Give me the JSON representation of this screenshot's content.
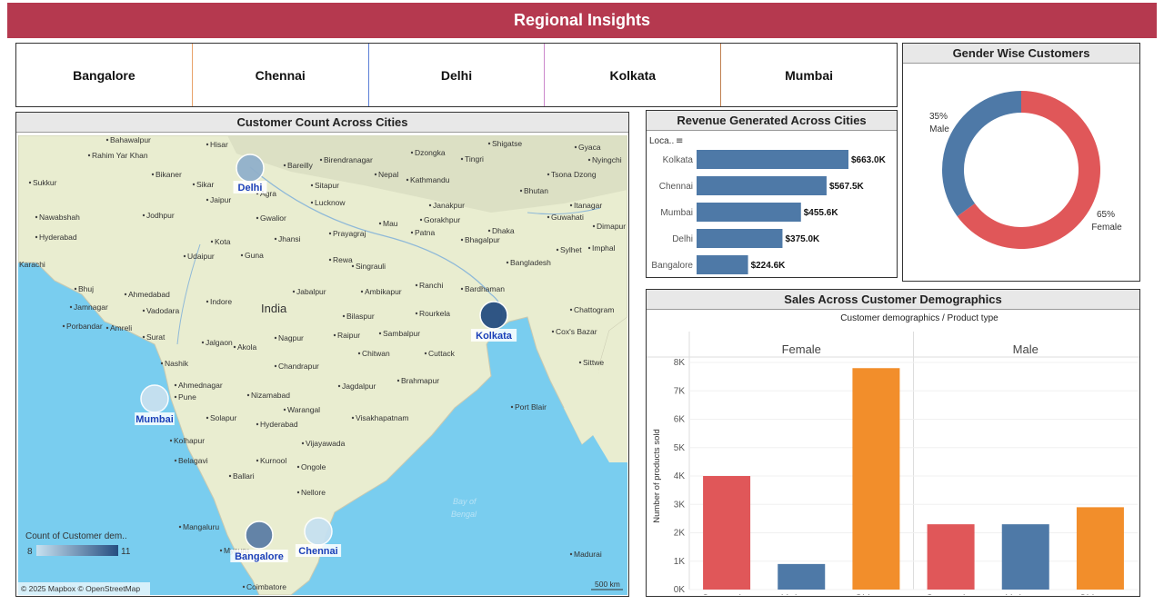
{
  "banner": {
    "title": "Regional Insights",
    "color": "#b5394f"
  },
  "city_filter": {
    "cities": [
      "Bangalore",
      "Chennai",
      "Delhi",
      "Kolkata",
      "Mumbai"
    ],
    "divider_colors": [
      "#e8a26a",
      "#5b7fd6",
      "#cc88cc",
      "#c08050"
    ]
  },
  "map": {
    "title": "Customer Count Across Cities",
    "attribution": "© 2025 Mapbox © OpenStreetMap",
    "scale_label": "500 km",
    "legend": {
      "title": "Count of Customer dem..",
      "min": "8",
      "max": "11"
    },
    "country_label": "India",
    "bay_label": [
      "Bay of",
      "Bengal"
    ],
    "city_markers": [
      {
        "name": "Delhi",
        "count": 9
      },
      {
        "name": "Kolkata",
        "count": 11
      },
      {
        "name": "Mumbai",
        "count": 8
      },
      {
        "name": "Bangalore",
        "count": 10
      },
      {
        "name": "Chennai",
        "count": 8
      }
    ],
    "place_labels": [
      "Bahawalpur",
      "Rahim Yar Khan",
      "Bikaner",
      "Hisar",
      "Bareilly",
      "Birendranagar",
      "Dzongka",
      "Tingri",
      "Shigatse",
      "Gyaca",
      "Nyingchi",
      "Sukkur",
      "Sikar",
      "Sitapur",
      "Nepal",
      "Kathmandu",
      "Tsona Dzong",
      "Bhutan",
      "Lucknow",
      "Jaipur",
      "Agra",
      "Janakpur",
      "Itanagar",
      "Guwahati",
      "Nawabshah",
      "Jodhpur",
      "Gwalior",
      "Mau",
      "Patna",
      "Bhagalpur",
      "Dimapur",
      "Hyderabad",
      "Kota",
      "Jhansi",
      "Prayagraj",
      "Imphal",
      "Udaipur",
      "Guna",
      "Rewa",
      "Singrauli",
      "Bangladesh",
      "Sylhet",
      "Karachi",
      "Bhuj",
      "Ahmedabad",
      "Indore",
      "Jabalpur",
      "Ambikapur",
      "Ranchi",
      "Bardhaman",
      "Jamnagar",
      "Vadodara",
      "Bilaspur",
      "Rourkela",
      "Chattogram",
      "Porbandar",
      "Amreli",
      "Surat",
      "Nagpur",
      "Raipur",
      "Sambalpur",
      "Cox's Bazar",
      "Jalgaon",
      "Akola",
      "Cuttack",
      "Sittwe",
      "Nashik",
      "Chandrapur",
      "Ahmednagar",
      "Pune",
      "Nizamabad",
      "Jagdalpur",
      "Brahmapur",
      "Warangal",
      "Solapur",
      "Hyderabad",
      "Visakhapatnam",
      "Kolhapur",
      "Vijayawada",
      "Belagavi",
      "Kurnool",
      "Ongole",
      "Ballari",
      "Nellore",
      "Mangaluru",
      "Mysuru",
      "Coimbatore",
      "Madurai",
      "Port Blair",
      "Dhaka",
      "Gorakhpur",
      "Chitwan"
    ],
    "map_land_color": "#e9edd0",
    "map_water_color": "#79cdef"
  },
  "revenue": {
    "title": "Revenue Generated Across Cities",
    "axis_header": "Loca..",
    "bar_color": "#4e79a7",
    "chart_data": {
      "type": "bar",
      "orientation": "horizontal",
      "categories": [
        "Kolkata",
        "Chennai",
        "Mumbai",
        "Delhi",
        "Bangalore"
      ],
      "values": [
        663.0,
        567.5,
        455.6,
        375.0,
        224.6
      ],
      "value_labels": [
        "$663.0K",
        "$567.5K",
        "$455.6K",
        "$375.0K",
        "$224.6K"
      ],
      "unit": "$K"
    }
  },
  "gender": {
    "title": "Gender Wise Customers",
    "chart_data": {
      "type": "pie",
      "donut": true,
      "slices": [
        {
          "label": "Female",
          "percent": 65,
          "pct_text": "65%",
          "color": "#e05759"
        },
        {
          "label": "Male",
          "percent": 35,
          "pct_text": "35%",
          "color": "#4e79a7"
        }
      ]
    }
  },
  "demographics": {
    "title": "Sales Across Customer Demographics",
    "header": "Customer demographics / Product type",
    "ylabel": "Number of products sold",
    "chart_data": {
      "type": "bar",
      "groups": [
        "Female",
        "Male"
      ],
      "categories": [
        "Cosmetics",
        "Haircare",
        "Skincare"
      ],
      "colors": {
        "Cosmetics": "#e05759",
        "Haircare": "#4e79a7",
        "Skincare": "#f28e2b"
      },
      "series": [
        {
          "name": "Female",
          "values": [
            4000,
            900,
            7800
          ]
        },
        {
          "name": "Male",
          "values": [
            2300,
            2300,
            2900
          ]
        }
      ],
      "ylim": [
        0,
        8000
      ],
      "yticks": [
        "0K",
        "1K",
        "2K",
        "3K",
        "4K",
        "5K",
        "6K",
        "7K",
        "8K"
      ],
      "tick_values": [
        0,
        1000,
        2000,
        3000,
        4000,
        5000,
        6000,
        7000,
        8000
      ]
    }
  }
}
